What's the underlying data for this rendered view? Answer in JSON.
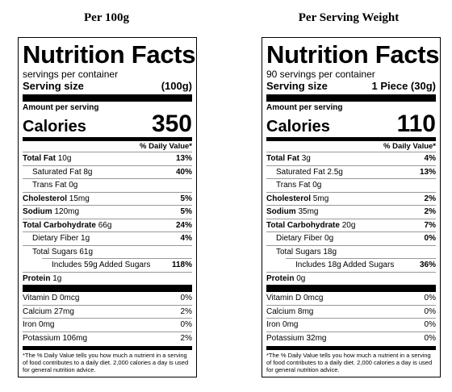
{
  "labels": [
    {
      "heading": "Per 100g",
      "title": "Nutrition Facts",
      "servings_per_container": "servings per container",
      "serving_size_label": "Serving size",
      "serving_size_value": "(100g)",
      "amount_per_serving": "Amount per serving",
      "calories_label": "Calories",
      "calories_value": "350",
      "daily_value_header": "% Daily Value*",
      "total_fat": {
        "name": "Total Fat",
        "amount": "10g",
        "dv": "13%"
      },
      "saturated_fat": {
        "name": "Saturated Fat 8g",
        "dv": "40%"
      },
      "trans_fat": {
        "name": "Trans Fat 0g"
      },
      "cholesterol": {
        "name": "Cholesterol",
        "amount": "15mg",
        "dv": "5%"
      },
      "sodium": {
        "name": "Sodium",
        "amount": "120mg",
        "dv": "5%"
      },
      "total_carb": {
        "name": "Total Carbohydrate",
        "amount": "66g",
        "dv": "24%"
      },
      "fiber": {
        "name": "Dietary Fiber 1g",
        "dv": "4%"
      },
      "total_sugars": {
        "name": "Total Sugars 61g"
      },
      "added_sugars": {
        "name": "Includes 59g Added Sugars",
        "dv": "118%"
      },
      "protein": {
        "name": "Protein",
        "amount": "1g"
      },
      "vitamin_d": {
        "name": "Vitamin D 0mcg",
        "dv": "0%"
      },
      "calcium": {
        "name": "Calcium 27mg",
        "dv": "2%"
      },
      "iron": {
        "name": "Iron 0mg",
        "dv": "0%"
      },
      "potassium": {
        "name": "Potassium 106mg",
        "dv": "2%"
      },
      "footnote": "*The % Daily Value tells you how much a nutrient in a serving of food contributes to a daily diet. 2,000 calories a day is used for general nutrition advice."
    },
    {
      "heading": "Per Serving Weight",
      "title": "Nutrition Facts",
      "servings_per_container": "90 servings per container",
      "serving_size_label": "Serving size",
      "serving_size_value": "1 Piece (30g)",
      "amount_per_serving": "Amount per serving",
      "calories_label": "Calories",
      "calories_value": "110",
      "daily_value_header": "% Daily Value*",
      "total_fat": {
        "name": "Total Fat",
        "amount": "3g",
        "dv": "4%"
      },
      "saturated_fat": {
        "name": "Saturated Fat 2.5g",
        "dv": "13%"
      },
      "trans_fat": {
        "name": "Trans Fat 0g"
      },
      "cholesterol": {
        "name": "Cholesterol",
        "amount": "5mg",
        "dv": "2%"
      },
      "sodium": {
        "name": "Sodium",
        "amount": "35mg",
        "dv": "2%"
      },
      "total_carb": {
        "name": "Total Carbohydrate",
        "amount": "20g",
        "dv": "7%"
      },
      "fiber": {
        "name": "Dietary Fiber 0g",
        "dv": "0%"
      },
      "total_sugars": {
        "name": "Total Sugars 18g"
      },
      "added_sugars": {
        "name": "Includes 18g Added Sugars",
        "dv": "36%"
      },
      "protein": {
        "name": "Protein",
        "amount": "0g"
      },
      "vitamin_d": {
        "name": "Vitamin D 0mcg",
        "dv": "0%"
      },
      "calcium": {
        "name": "Calcium 8mg",
        "dv": "0%"
      },
      "iron": {
        "name": "Iron 0mg",
        "dv": "0%"
      },
      "potassium": {
        "name": "Potassium 32mg",
        "dv": "0%"
      },
      "footnote": "*The % Daily Value tells you how much a nutrient in a serving of food contributes to a daily diet. 2,000 calories a day is used for general nutrition advice."
    }
  ]
}
